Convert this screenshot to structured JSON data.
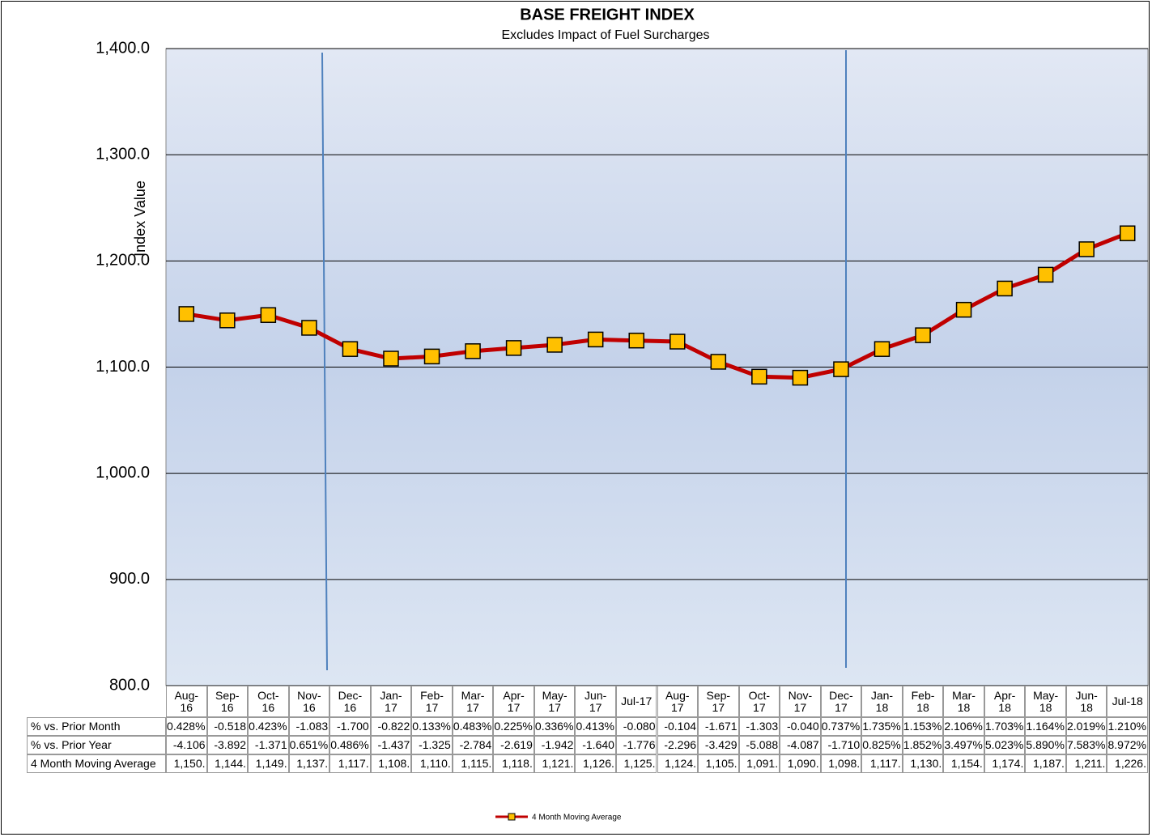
{
  "chart_data": {
    "type": "line",
    "title": "BASE FREIGHT INDEX",
    "subtitle": "Excludes Impact of Fuel Surcharges",
    "y_label": "Index Value",
    "categories": [
      "Aug-16",
      "Sep-16",
      "Oct-16",
      "Nov-16",
      "Dec-16",
      "Jan-17",
      "Feb-17",
      "Mar-17",
      "Apr-17",
      "May-17",
      "Jun-17",
      "Jul-17",
      "Aug-17",
      "Sep-17",
      "Oct-17",
      "Nov-17",
      "Dec-17",
      "Jan-18",
      "Feb-18",
      "Mar-18",
      "Apr-18",
      "May-18",
      "Jun-18",
      "Jul-18"
    ],
    "series": [
      {
        "name": "4 Month Moving Average",
        "color": "#c00000",
        "marker_color": "#ffc000",
        "values": [
          1150,
          1144,
          1149,
          1137,
          1117,
          1108,
          1110,
          1115,
          1118,
          1121,
          1126,
          1125,
          1124,
          1105,
          1091,
          1090,
          1098,
          1117,
          1130,
          1154,
          1174,
          1187,
          1211,
          1226
        ],
        "value_labels": [
          "1,150.",
          "1,144.",
          "1,149.",
          "1,137.",
          "1,117.",
          "1,108.",
          "1,110.",
          "1,115.",
          "1,118.",
          "1,121.",
          "1,126.",
          "1,125.",
          "1,124.",
          "1,105.",
          "1,091.",
          "1,090.",
          "1,098.",
          "1,117.",
          "1,130.",
          "1,154.",
          "1,174.",
          "1,187.",
          "1,211.",
          "1,226."
        ]
      }
    ],
    "table_rows": [
      {
        "label": "% vs. Prior Month",
        "cells": [
          "0.428%",
          "-0.518",
          "0.423%",
          "-1.083",
          "-1.700",
          "-0.822",
          "0.133%",
          "0.483%",
          "0.225%",
          "0.336%",
          "0.413%",
          "-0.080",
          "-0.104",
          "-1.671",
          "-1.303",
          "-0.040",
          "0.737%",
          "1.735%",
          "1.153%",
          "2.106%",
          "1.703%",
          "1.164%",
          "2.019%",
          "1.210%"
        ]
      },
      {
        "label": "% vs. Prior Year",
        "cells": [
          "-4.106",
          "-3.892",
          "-1.371",
          "0.651%",
          "0.486%",
          "-1.437",
          "-1.325",
          "-2.784",
          "-2.619",
          "-1.942",
          "-1.640",
          "-1.776",
          "-2.296",
          "-3.429",
          "-5.088",
          "-4.087",
          "-1.710",
          "0.825%",
          "1.852%",
          "3.497%",
          "5.023%",
          "5.890%",
          "7.583%",
          "8.972%"
        ]
      }
    ],
    "ylim": [
      800,
      1400
    ],
    "yticks": [
      {
        "value": 800,
        "label": "800.0"
      },
      {
        "value": 900,
        "label": "900.0"
      },
      {
        "value": 1000,
        "label": "1,000.0"
      },
      {
        "value": 1100,
        "label": "1,100.0"
      },
      {
        "value": 1200,
        "label": "1,200.0"
      },
      {
        "value": 1300,
        "label": "1,300.0"
      },
      {
        "value": 1400,
        "label": "1,400.0"
      }
    ],
    "grid": true
  }
}
